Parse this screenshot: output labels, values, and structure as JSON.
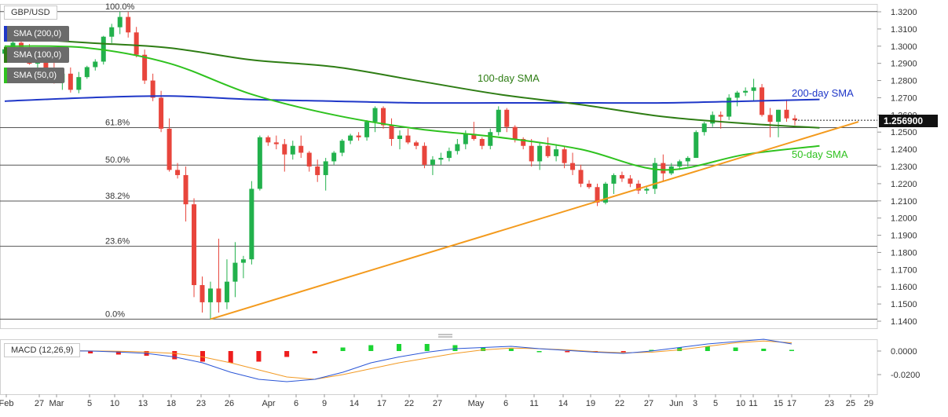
{
  "colors": {
    "bull": "#22b14c",
    "bear": "#e8453c",
    "sma50": "#2fc21f",
    "sma100": "#2e7d14",
    "sma200": "#1f37c8",
    "trend": "#f39a1d",
    "macd": "#2a55d6",
    "signal": "#f29a24",
    "hist_pos": "#1bd433",
    "hist_neg": "#ee1d1d",
    "fib": "#555555",
    "price_tag": "#111111"
  },
  "legend": {
    "pair": "GBP/USD",
    "sma200": "SMA (200,0)",
    "sma100": "SMA (100,0)",
    "sma50": "SMA (50,0)",
    "macd": "MACD (12,26,9)"
  },
  "annotations": {
    "sma100": "100-day SMA",
    "sma200": "200-day SMA",
    "sma50": "50-day SMA"
  },
  "price_tag": "1.256900",
  "chart_data": [
    {
      "type": "candlestick",
      "ylim": [
        1.13,
        1.33
      ],
      "y_ticks": [
        "1.3200",
        "1.3100",
        "1.3000",
        "1.2900",
        "1.2800",
        "1.2700",
        "1.2600",
        "1.2500",
        "1.2400",
        "1.2300",
        "1.2200",
        "1.2100",
        "1.2000",
        "1.1900",
        "1.1800",
        "1.1700",
        "1.1600",
        "1.1500",
        "1.1400"
      ],
      "x_ticks": [
        "Feb",
        "27",
        "Mar",
        "5",
        "10",
        "13",
        "18",
        "23",
        "26",
        "Apr",
        "6",
        "9",
        "14",
        "17",
        "22",
        "27",
        "May",
        "6",
        "11",
        "14",
        "19",
        "22",
        "27",
        "Jun",
        "3",
        "5",
        "10",
        "11",
        "15",
        "17",
        "23",
        "25",
        "29"
      ],
      "fib_levels": [
        {
          "label": "100.0%",
          "value": 1.3201
        },
        {
          "label": "61.8%",
          "value": 1.2526
        },
        {
          "label": "50.0%",
          "value": 1.2308
        },
        {
          "label": "38.2%",
          "value": 1.2099
        },
        {
          "label": "23.6%",
          "value": 1.1836
        },
        {
          "label": "0.0%",
          "value": 1.1412
        }
      ],
      "candles": [
        [
          1.2956,
          1.3001,
          1.2915,
          1.2982
        ],
        [
          1.2985,
          1.3032,
          1.2948,
          1.302
        ],
        [
          1.302,
          1.3042,
          1.2972,
          1.299
        ],
        [
          1.299,
          1.3012,
          1.2892,
          1.2898
        ],
        [
          1.2898,
          1.2932,
          1.2846,
          1.2918
        ],
        [
          1.2918,
          1.2935,
          1.284,
          1.2862
        ],
        [
          1.2862,
          1.2905,
          1.2782,
          1.279
        ],
        [
          1.279,
          1.2862,
          1.2746,
          1.284
        ],
        [
          1.284,
          1.2876,
          1.273,
          1.2746
        ],
        [
          1.2746,
          1.285,
          1.2726,
          1.282
        ],
        [
          1.282,
          1.2886,
          1.281,
          1.2878
        ],
        [
          1.2878,
          1.2924,
          1.2858,
          1.291
        ],
        [
          1.291,
          1.306,
          1.2893,
          1.3055
        ],
        [
          1.3055,
          1.313,
          1.3018,
          1.311
        ],
        [
          1.311,
          1.32,
          1.307,
          1.317
        ],
        [
          1.317,
          1.32,
          1.305,
          1.308
        ],
        [
          1.308,
          1.3112,
          1.2935,
          1.295
        ],
        [
          1.295,
          1.298,
          1.278,
          1.28
        ],
        [
          1.28,
          1.284,
          1.268,
          1.27
        ],
        [
          1.27,
          1.274,
          1.25,
          1.252
        ],
        [
          1.252,
          1.258,
          1.227,
          1.228
        ],
        [
          1.228,
          1.232,
          1.223,
          1.225
        ],
        [
          1.225,
          1.23,
          1.198,
          1.208
        ],
        [
          1.208,
          1.2115,
          1.154,
          1.161
        ],
        [
          1.161,
          1.166,
          1.145,
          1.151
        ],
        [
          1.151,
          1.163,
          1.1412,
          1.159
        ],
        [
          1.159,
          1.188,
          1.145,
          1.151
        ],
        [
          1.151,
          1.176,
          1.147,
          1.163
        ],
        [
          1.163,
          1.186,
          1.154,
          1.174
        ],
        [
          1.174,
          1.178,
          1.165,
          1.176
        ],
        [
          1.176,
          1.2215,
          1.173,
          1.217
        ],
        [
          1.217,
          1.248,
          1.216,
          1.247
        ],
        [
          1.247,
          1.248,
          1.242,
          1.244
        ],
        [
          1.244,
          1.248,
          1.24,
          1.243
        ],
        [
          1.243,
          1.246,
          1.227,
          1.237
        ],
        [
          1.237,
          1.245,
          1.234,
          1.242
        ],
        [
          1.242,
          1.248,
          1.235,
          1.238
        ],
        [
          1.238,
          1.239,
          1.227,
          1.23
        ],
        [
          1.23,
          1.234,
          1.221,
          1.225
        ],
        [
          1.225,
          1.235,
          1.216,
          1.233
        ],
        [
          1.233,
          1.239,
          1.231,
          1.238
        ],
        [
          1.238,
          1.246,
          1.236,
          1.245
        ],
        [
          1.245,
          1.249,
          1.243,
          1.248
        ],
        [
          1.248,
          1.25,
          1.245,
          1.247
        ],
        [
          1.247,
          1.257,
          1.245,
          1.256
        ],
        [
          1.256,
          1.265,
          1.25,
          1.264
        ],
        [
          1.264,
          1.265,
          1.252,
          1.254
        ],
        [
          1.254,
          1.258,
          1.242,
          1.246
        ],
        [
          1.246,
          1.251,
          1.24,
          1.248
        ],
        [
          1.248,
          1.252,
          1.243,
          1.244
        ],
        [
          1.244,
          1.245,
          1.24,
          1.242
        ],
        [
          1.242,
          1.244,
          1.229,
          1.231
        ],
        [
          1.231,
          1.236,
          1.225,
          1.234
        ],
        [
          1.234,
          1.238,
          1.231,
          1.235
        ],
        [
          1.235,
          1.241,
          1.233,
          1.239
        ],
        [
          1.239,
          1.246,
          1.237,
          1.243
        ],
        [
          1.243,
          1.251,
          1.24,
          1.249
        ],
        [
          1.249,
          1.256,
          1.245,
          1.246
        ],
        [
          1.246,
          1.247,
          1.24,
          1.242
        ],
        [
          1.242,
          1.252,
          1.24,
          1.25
        ],
        [
          1.25,
          1.265,
          1.248,
          1.263
        ],
        [
          1.263,
          1.264,
          1.25,
          1.253
        ],
        [
          1.253,
          1.254,
          1.244,
          1.246
        ],
        [
          1.246,
          1.247,
          1.24,
          1.242
        ],
        [
          1.242,
          1.246,
          1.23,
          1.233
        ],
        [
          1.233,
          1.244,
          1.228,
          1.242
        ],
        [
          1.242,
          1.247,
          1.235,
          1.236
        ],
        [
          1.236,
          1.243,
          1.233,
          1.24
        ],
        [
          1.24,
          1.242,
          1.229,
          1.232
        ],
        [
          1.232,
          1.238,
          1.225,
          1.228
        ],
        [
          1.228,
          1.231,
          1.218,
          1.22
        ],
        [
          1.22,
          1.222,
          1.217,
          1.218
        ],
        [
          1.218,
          1.22,
          1.207,
          1.209
        ],
        [
          1.209,
          1.221,
          1.208,
          1.22
        ],
        [
          1.22,
          1.226,
          1.214,
          1.225
        ],
        [
          1.225,
          1.227,
          1.221,
          1.223
        ],
        [
          1.223,
          1.225,
          1.218,
          1.22
        ],
        [
          1.22,
          1.222,
          1.214,
          1.216
        ],
        [
          1.216,
          1.218,
          1.214,
          1.217
        ],
        [
          1.217,
          1.235,
          1.214,
          1.232
        ],
        [
          1.232,
          1.237,
          1.221,
          1.226
        ],
        [
          1.226,
          1.232,
          1.225,
          1.23
        ],
        [
          1.23,
          1.234,
          1.228,
          1.233
        ],
        [
          1.233,
          1.236,
          1.23,
          1.235
        ],
        [
          1.235,
          1.251,
          1.235,
          1.25
        ],
        [
          1.25,
          1.256,
          1.248,
          1.255
        ],
        [
          1.255,
          1.262,
          1.253,
          1.26
        ],
        [
          1.26,
          1.262,
          1.252,
          1.259
        ],
        [
          1.259,
          1.272,
          1.257,
          1.27
        ],
        [
          1.27,
          1.274,
          1.265,
          1.273
        ],
        [
          1.273,
          1.276,
          1.271,
          1.274
        ],
        [
          1.274,
          1.281,
          1.268,
          1.276
        ],
        [
          1.276,
          1.278,
          1.259,
          1.26
        ],
        [
          1.26,
          1.264,
          1.247,
          1.256
        ],
        [
          1.256,
          1.263,
          1.247,
          1.263
        ],
        [
          1.263,
          1.269,
          1.256,
          1.258
        ],
        [
          1.258,
          1.26,
          1.254,
          1.2569
        ]
      ],
      "series": [
        {
          "name": "200-day SMA",
          "values": [
            [
              0,
              1.268
            ],
            [
              10,
              1.27
            ],
            [
              20,
              1.271
            ],
            [
              30,
              1.269
            ],
            [
              40,
              1.268
            ],
            [
              50,
              1.267
            ],
            [
              60,
              1.267
            ],
            [
              70,
              1.267
            ],
            [
              80,
              1.267
            ],
            [
              90,
              1.268
            ],
            [
              99,
              1.269
            ]
          ]
        },
        {
          "name": "100-day SMA",
          "values": [
            [
              0,
              1.305
            ],
            [
              10,
              1.302
            ],
            [
              20,
              1.299
            ],
            [
              30,
              1.292
            ],
            [
              40,
              1.288
            ],
            [
              50,
              1.28
            ],
            [
              60,
              1.272
            ],
            [
              70,
              1.266
            ],
            [
              80,
              1.259
            ],
            [
              90,
              1.255
            ],
            [
              99,
              1.2525
            ]
          ]
        },
        {
          "name": "50-day SMA",
          "values": [
            [
              0,
              1.3
            ],
            [
              10,
              1.299
            ],
            [
              20,
              1.29
            ],
            [
              30,
              1.272
            ],
            [
              40,
              1.26
            ],
            [
              50,
              1.252
            ],
            [
              60,
              1.247
            ],
            [
              70,
              1.24
            ],
            [
              80,
              1.228
            ],
            [
              90,
              1.237
            ],
            [
              99,
              1.242
            ]
          ]
        },
        {
          "values": [
            [
              25,
              1.1412
            ],
            [
              105,
              1.256
            ]
          ]
        }
      ]
    },
    {
      "type": "macd",
      "ylim": [
        -0.03,
        0.02
      ],
      "y_ticks": [
        "0.0000",
        "-0.0200"
      ],
      "macd_line": [
        0.001,
        0.0005,
        0.0002,
        0.0,
        -0.0008,
        -0.002,
        -0.005,
        -0.01,
        -0.018,
        -0.024,
        -0.026,
        -0.024,
        -0.018,
        -0.01,
        -0.005,
        -0.001,
        0.002,
        0.003,
        0.004,
        0.002,
        0.0005,
        -0.001,
        -0.002,
        0.0,
        0.003,
        0.006,
        0.008,
        0.01,
        0.006
      ],
      "signal_line": [
        0.001,
        0.0008,
        0.0004,
        0.0001,
        -0.0002,
        -0.0008,
        -0.002,
        -0.005,
        -0.01,
        -0.016,
        -0.022,
        -0.024,
        -0.02,
        -0.015,
        -0.01,
        -0.006,
        -0.002,
        0.001,
        0.0025,
        0.002,
        0.001,
        -0.0005,
        -0.0015,
        -0.001,
        0.001,
        0.004,
        0.007,
        0.0085,
        0.007
      ],
      "histogram": [
        0.0,
        0.0,
        -0.001,
        -0.002,
        -0.003,
        -0.004,
        -0.007,
        -0.009,
        -0.01,
        -0.009,
        -0.005,
        -0.002,
        0.003,
        0.005,
        0.006,
        0.006,
        0.005,
        0.003,
        0.002,
        0.0,
        -0.001,
        -0.001,
        -0.001,
        0.001,
        0.003,
        0.004,
        0.003,
        0.002,
        0.001
      ]
    }
  ]
}
